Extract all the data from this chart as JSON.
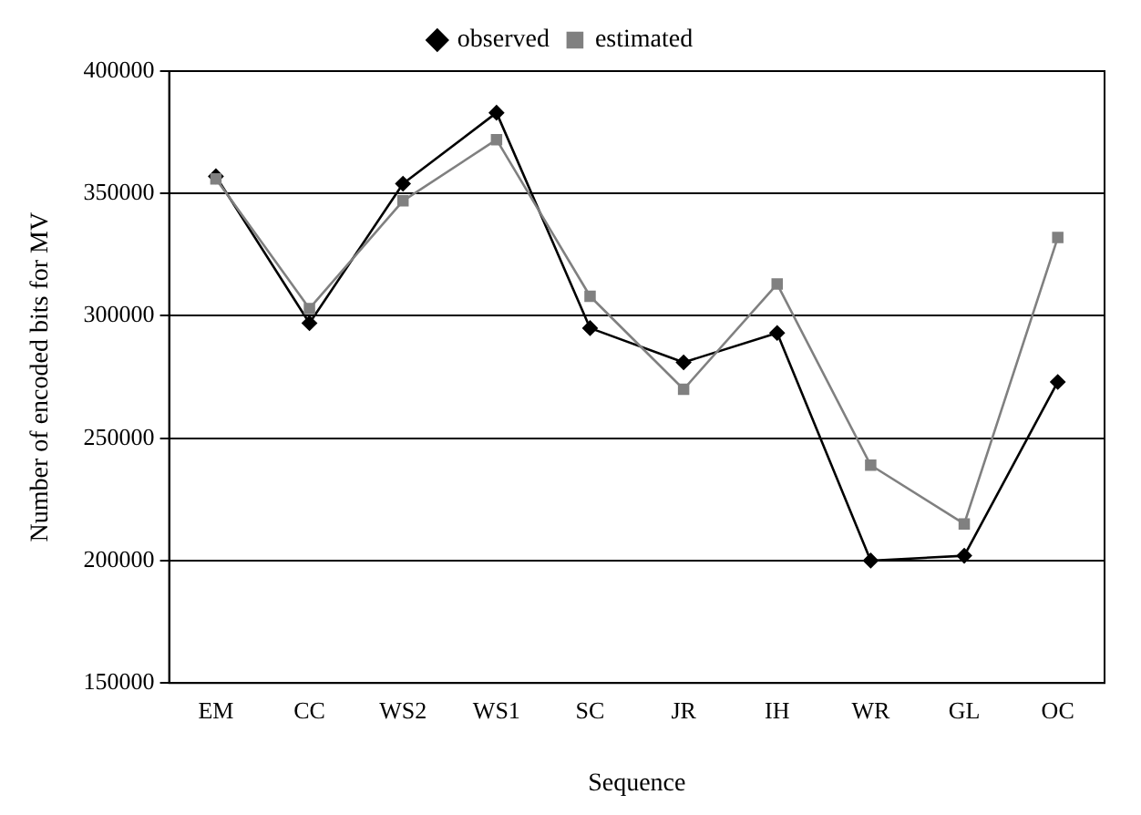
{
  "chart_data": {
    "type": "line",
    "xlabel": "Sequence",
    "ylabel": "Number of encoded bits for MV",
    "categories": [
      "EM",
      "CC",
      "WS2",
      "WS1",
      "SC",
      "JR",
      "IH",
      "WR",
      "GL",
      "OC"
    ],
    "series": [
      {
        "name": "observed",
        "color": "#000000",
        "marker": "diamond",
        "values": [
          357000,
          297000,
          354000,
          383000,
          295000,
          281000,
          293000,
          200000,
          202000,
          273000
        ]
      },
      {
        "name": "estimated",
        "color": "#808080",
        "marker": "square",
        "values": [
          356000,
          303000,
          347000,
          372000,
          308000,
          270000,
          313000,
          239000,
          215000,
          332000
        ]
      }
    ],
    "ylim": [
      150000,
      400000
    ],
    "yticks": [
      150000,
      200000,
      250000,
      300000,
      350000,
      400000
    ],
    "grid": "y",
    "legend": "top",
    "line_style": "solid"
  }
}
